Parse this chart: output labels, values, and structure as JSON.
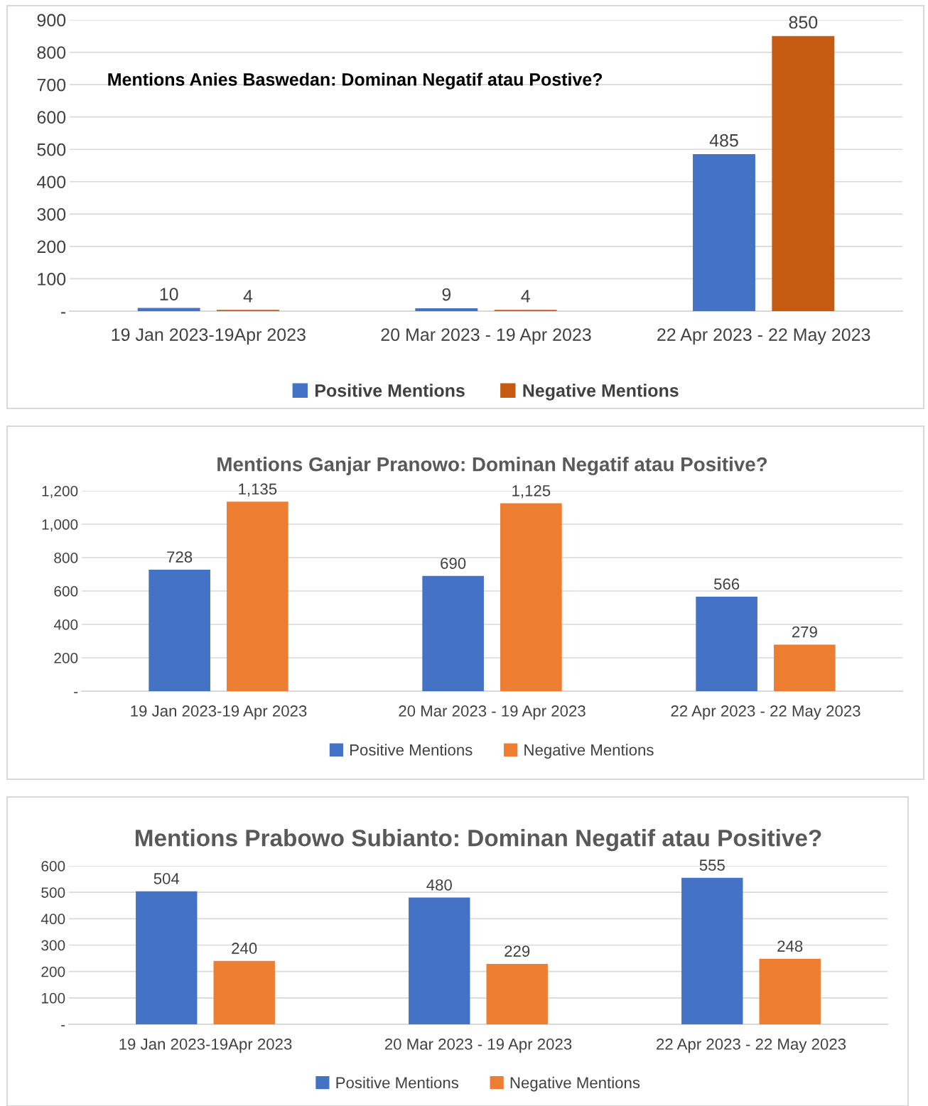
{
  "chart_data": [
    {
      "type": "bar",
      "title": "Mentions Anies Baswedan: Dominan Negatif atau Postive?",
      "categories": [
        "19 Jan 2023-19Apr 2023",
        "20 Mar 2023 - 19 Apr 2023",
        "22 Apr 2023 - 22 May 2023"
      ],
      "series": [
        {
          "name": "Positive Mentions",
          "color": "#4472c4",
          "values": [
            10,
            9,
            485
          ]
        },
        {
          "name": "Negative Mentions",
          "color": "#c55a11",
          "values": [
            4,
            4,
            850
          ]
        }
      ],
      "ylim": [
        0,
        900
      ],
      "yticks": [
        {
          "value": 0,
          "label": "-"
        },
        100,
        200,
        300,
        400,
        500,
        600,
        700,
        800,
        900
      ],
      "grid": "y",
      "legend": "bottom",
      "data_labels": true
    },
    {
      "type": "bar",
      "title": "Mentions Ganjar Pranowo: Dominan Negatif atau Positive?",
      "categories": [
        "19 Jan 2023-19 Apr 2023",
        "20 Mar 2023 - 19 Apr 2023",
        "22 Apr 2023 - 22 May 2023"
      ],
      "series": [
        {
          "name": "Positive Mentions",
          "color": "#4472c4",
          "values": [
            728,
            690,
            566
          ],
          "value_labels": [
            "728",
            "690",
            "566"
          ]
        },
        {
          "name": "Negative Mentions",
          "color": "#ed7d31",
          "values": [
            1135,
            1125,
            279
          ],
          "value_labels": [
            "1,135",
            "1,125",
            "279"
          ]
        }
      ],
      "ylim": [
        0,
        1200
      ],
      "yticks": [
        {
          "value": 0,
          "label": "-"
        },
        200,
        400,
        600,
        800,
        {
          "value": 1000,
          "label": "1,000"
        },
        {
          "value": 1200,
          "label": "1,200"
        }
      ],
      "grid": "y",
      "legend": "bottom"
    },
    {
      "type": "bar",
      "title": "Mentions Prabowo Subianto: Dominan Negatif atau Positive?",
      "categories": [
        "19 Jan 2023-19Apr 2023",
        "20 Mar 2023 - 19 Apr 2023",
        "22 Apr 2023 - 22 May 2023"
      ],
      "series": [
        {
          "name": "Positive Mentions",
          "color": "#4472c4",
          "values": [
            504,
            480,
            555
          ]
        },
        {
          "name": "Negative Mentions",
          "color": "#ed7d31",
          "values": [
            240,
            229,
            248
          ]
        }
      ],
      "ylim": [
        0,
        600
      ],
      "yticks": [
        {
          "value": 0,
          "label": "-"
        },
        100,
        200,
        300,
        400,
        500,
        600
      ],
      "grid": "y",
      "legend": "bottom",
      "data_labels": true
    }
  ]
}
